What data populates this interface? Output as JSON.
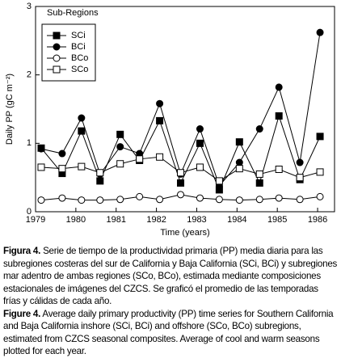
{
  "chart_data": {
    "type": "line",
    "xlabel": "Time (years)",
    "ylabel": "Daily PP (gC m⁻²)",
    "legend_title": "Sub-Regions",
    "legend": "upper left",
    "x": [
      1979.14,
      1979.66,
      1980.14,
      1980.6,
      1981.1,
      1981.58,
      1982.08,
      1982.6,
      1983.08,
      1983.56,
      1984.06,
      1984.56,
      1985.04,
      1985.56,
      1986.06
    ],
    "series": [
      {
        "name": "SCi",
        "color": "#000000",
        "marker": "square",
        "filled": true,
        "values": [
          0.93,
          0.56,
          1.18,
          0.45,
          1.13,
          0.75,
          1.33,
          0.42,
          1.0,
          0.32,
          1.02,
          0.42,
          1.4,
          0.47,
          1.1
        ]
      },
      {
        "name": "BCi",
        "color": "#000000",
        "marker": "circle",
        "filled": true,
        "values": [
          0.92,
          0.85,
          1.37,
          0.55,
          0.95,
          0.85,
          1.58,
          0.55,
          1.21,
          0.38,
          0.72,
          1.21,
          1.82,
          0.72,
          2.62
        ]
      },
      {
        "name": "BCo",
        "color": "#000000",
        "marker": "circle",
        "filled": false,
        "values": [
          0.17,
          0.2,
          0.17,
          0.17,
          0.18,
          0.22,
          0.18,
          0.25,
          0.2,
          0.18,
          0.17,
          0.18,
          0.2,
          0.18,
          0.22
        ]
      },
      {
        "name": "SCo",
        "color": "#000000",
        "marker": "square",
        "filled": false,
        "values": [
          0.65,
          0.63,
          0.66,
          0.57,
          0.7,
          0.77,
          0.8,
          0.57,
          0.65,
          0.45,
          0.63,
          0.55,
          0.62,
          0.5,
          0.58
        ]
      }
    ],
    "xlim": [
      1979,
      1986.42
    ],
    "xticks": [
      1979,
      1980,
      1981,
      1982,
      1983,
      1984,
      1985,
      1986
    ],
    "ylim": [
      0,
      3
    ],
    "yticks": [
      0,
      1,
      2,
      3
    ]
  },
  "caption": {
    "es_label": "Figura 4.",
    "es_text": "Serie de tiempo de la productividad primaria (PP) media diaria para las subregiones costeras del sur de California y Baja California (SCi, BCi) y subregiones mar adentro de ambas regiones (SCo, BCo), estimada mediante composiciones estacionales de imágenes del CZCS. Se graficó el promedio de las temporadas frías y cálidas de cada año.",
    "en_label": "Figure 4.",
    "en_text": "Average daily primary productivity (PP) time series for Southern California and Baja California inshore (SCi, BCi) and offshore (SCo, BCo) subregions, estimated from CZCS seasonal composites. Average of cool and warm seasons plotted for each year."
  }
}
